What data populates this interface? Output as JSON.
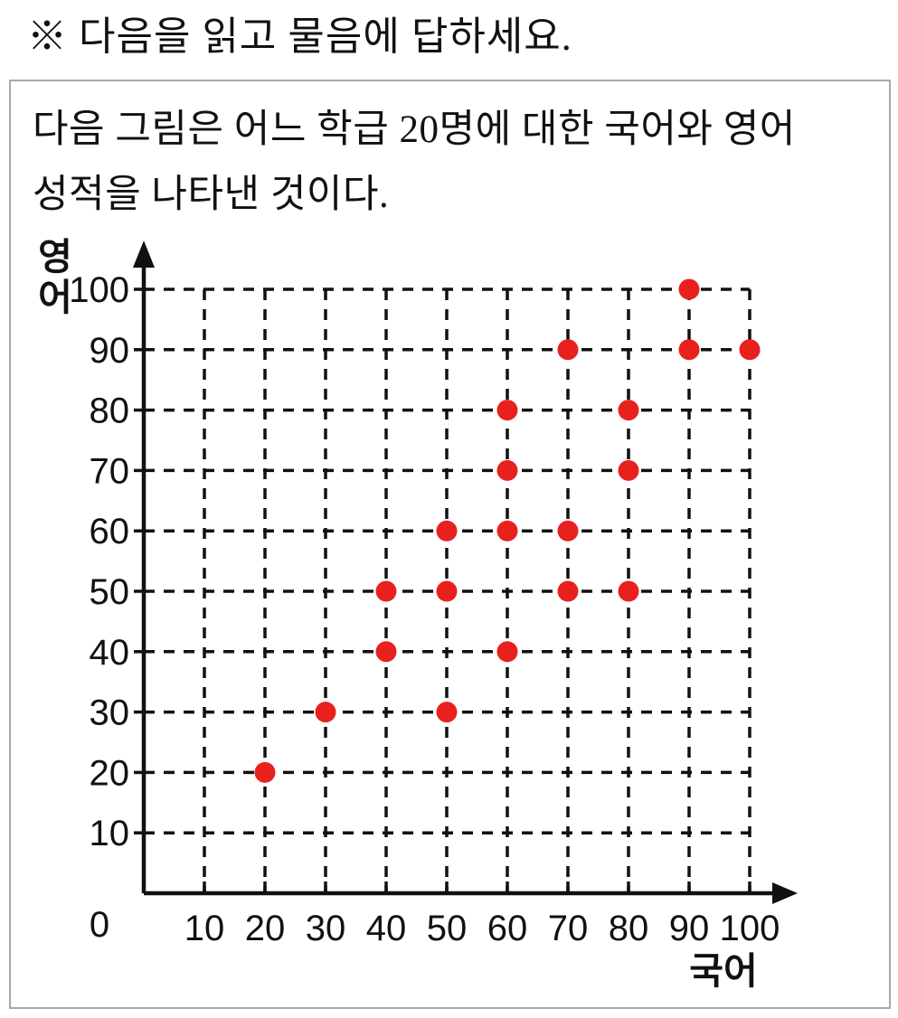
{
  "header": {
    "instruction": "※ 다음을 읽고 물음에 답하세요."
  },
  "card": {
    "description_line1": "다음 그림은 어느 학급 20명에 대한 국어와 영어",
    "description_line2": "성적을 나타낸 것이다."
  },
  "chart_data": {
    "type": "scatter",
    "title": "",
    "xlabel": "국어",
    "ylabel": "영어",
    "xlim": [
      0,
      100
    ],
    "ylim": [
      0,
      100
    ],
    "x_ticks": [
      10,
      20,
      30,
      40,
      50,
      60,
      70,
      80,
      90,
      100
    ],
    "y_ticks": [
      10,
      20,
      30,
      40,
      50,
      60,
      70,
      80,
      90,
      100
    ],
    "origin_label": "0",
    "grid": "dashed",
    "legend": "none",
    "point_color": "#e8211f",
    "axis_color": "#111111",
    "n_students": 20,
    "points": [
      [
        20,
        20
      ],
      [
        30,
        30
      ],
      [
        40,
        40
      ],
      [
        40,
        50
      ],
      [
        50,
        30
      ],
      [
        50,
        50
      ],
      [
        50,
        60
      ],
      [
        60,
        40
      ],
      [
        60,
        60
      ],
      [
        60,
        70
      ],
      [
        60,
        80
      ],
      [
        70,
        50
      ],
      [
        70,
        60
      ],
      [
        70,
        90
      ],
      [
        80,
        50
      ],
      [
        80,
        70
      ],
      [
        80,
        80
      ],
      [
        90,
        90
      ],
      [
        90,
        100
      ],
      [
        100,
        90
      ]
    ]
  }
}
